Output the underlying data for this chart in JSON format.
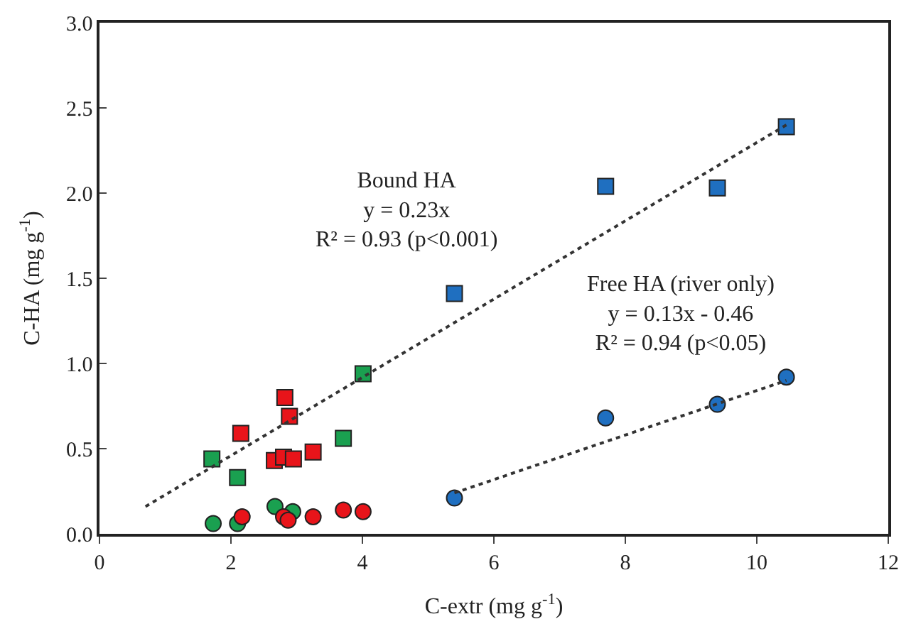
{
  "chart_data": {
    "type": "scatter",
    "xlabel": "C-extr (mg g$^{-1}$)",
    "ylabel": "C-HA (mg g$^{-1}$)",
    "xlim": [
      0,
      12
    ],
    "xticks": [
      0,
      2,
      4,
      6,
      8,
      10,
      12
    ],
    "ylim": [
      0,
      3
    ],
    "yticks": [
      {
        "value": 0,
        "label": "0.0"
      },
      0.5,
      {
        "value": 1,
        "label": "1.0"
      },
      1.5,
      {
        "value": 2,
        "label": "2.0"
      },
      2.5,
      {
        "value": 3,
        "label": "3.0"
      }
    ],
    "series": [
      {
        "color": "#1f6fc0",
        "marker": "square",
        "x": [
          5.4,
          7.7,
          9.4,
          10.45
        ],
        "values": [
          1.41,
          2.04,
          2.03,
          2.39
        ]
      },
      {
        "color": "#1f6fc0",
        "marker": "circle",
        "x": [
          5.4,
          7.7,
          9.4,
          10.45
        ],
        "values": [
          0.21,
          0.68,
          0.76,
          0.92
        ]
      },
      {
        "color": "#1aa050",
        "marker": "square",
        "x": [
          1.71,
          2.1,
          3.71,
          4.01
        ],
        "values": [
          0.44,
          0.33,
          0.56,
          0.94
        ]
      },
      {
        "color": "#1aa050",
        "marker": "circle",
        "x": [
          1.73,
          2.1,
          2.67,
          2.94
        ],
        "values": [
          0.06,
          0.06,
          0.16,
          0.13
        ]
      },
      {
        "color": "#e8141a",
        "marker": "square",
        "x": [
          2.82,
          2.89,
          2.15,
          2.66,
          2.8,
          2.95,
          3.25
        ],
        "values": [
          0.8,
          0.69,
          0.59,
          0.43,
          0.45,
          0.44,
          0.48
        ]
      },
      {
        "color": "#e8141a",
        "marker": "circle",
        "x": [
          2.17,
          2.8,
          2.87,
          3.25,
          3.71,
          4.01
        ],
        "values": [
          0.1,
          0.1,
          0.08,
          0.1,
          0.14,
          0.13
        ]
      },
      {
        "type": "line",
        "color": "#333333",
        "line_style": "dotted",
        "marker": "none",
        "x": [
          0.7,
          10.45
        ],
        "values": [
          0.16,
          2.4
        ]
      },
      {
        "type": "line",
        "color": "#333333",
        "line_style": "dotted",
        "marker": "none",
        "x": [
          5.4,
          10.45
        ],
        "values": [
          0.24,
          0.9
        ]
      }
    ],
    "annotations": [
      "Bound HA\ny = 0.23x\nR² = 0.93 (p<0.001)",
      "Free HA (river only)\ny = 0.13x - 0.46\nR² = 0.94 (p<0.05)"
    ]
  }
}
